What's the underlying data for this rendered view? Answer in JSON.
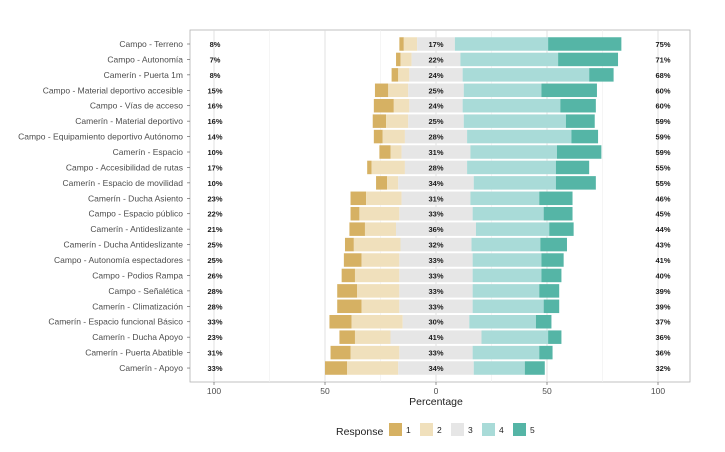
{
  "chart_data": {
    "type": "bar",
    "subtype": "diverging-stacked-likert",
    "xlabel": "Percentage",
    "xlim": [
      -100,
      100
    ],
    "xticks": [
      -100,
      -50,
      0,
      50,
      100
    ],
    "xtick_labels": [
      "100",
      "50",
      "0",
      "50",
      "100"
    ],
    "grid": true,
    "legend": {
      "title": "Response",
      "placement": "bottom",
      "labels": [
        "1",
        "2",
        "3",
        "4",
        "5"
      ]
    },
    "colors": {
      "1": "#D6B163",
      "2": "#F0E0BC",
      "3": "#E6E6E6",
      "4": "#A9DBD8",
      "5": "#55B5A6"
    },
    "categories": [
      "Campo - Terreno",
      "Campo - Autonomía",
      "Camerín - Puerta 1m",
      "Campo - Material deportivo accesible",
      "Campo - Vías de acceso",
      "Camerín - Material deportivo",
      "Campo - Equipamiento deportivo Autónomo",
      "Camerín - Espacio",
      "Campo - Accesibilidad de rutas",
      "Camerín - Espacio de movilidad",
      "Camerín - Ducha Asiento",
      "Campo - Espacio público",
      "Camerín - Antideslizante",
      "Camerín - Ducha Antideslizante",
      "Campo - Autonomía espectadores",
      "Campo - Podios Rampa",
      "Campo - Señalética",
      "Camerín - Climatización",
      "Camerín - Espacio funcional Básico",
      "Camerín - Ducha Apoyo",
      "Camerín - Puerta Abatible",
      "Camerín - Apoyo"
    ],
    "left_labels": [
      "8%",
      "7%",
      "8%",
      "15%",
      "16%",
      "16%",
      "14%",
      "10%",
      "17%",
      "10%",
      "23%",
      "22%",
      "21%",
      "25%",
      "25%",
      "26%",
      "28%",
      "28%",
      "33%",
      "23%",
      "31%",
      "33%"
    ],
    "center_labels": [
      "17%",
      "22%",
      "24%",
      "25%",
      "24%",
      "25%",
      "28%",
      "31%",
      "28%",
      "34%",
      "31%",
      "33%",
      "36%",
      "32%",
      "33%",
      "33%",
      "33%",
      "33%",
      "30%",
      "41%",
      "33%",
      "34%"
    ],
    "right_labels": [
      "75%",
      "71%",
      "68%",
      "60%",
      "60%",
      "59%",
      "59%",
      "59%",
      "55%",
      "55%",
      "46%",
      "45%",
      "44%",
      "43%",
      "41%",
      "40%",
      "39%",
      "39%",
      "37%",
      "36%",
      "36%",
      "32%"
    ],
    "series": [
      {
        "name": "1",
        "values": [
          2,
          2,
          3,
          6,
          9,
          6,
          4,
          5,
          2,
          5,
          7,
          4,
          7,
          4,
          8,
          6,
          9,
          11,
          10,
          7,
          9,
          10
        ]
      },
      {
        "name": "2",
        "values": [
          6,
          5,
          5,
          9,
          7,
          10,
          10,
          5,
          15,
          5,
          16,
          18,
          14,
          21,
          17,
          20,
          19,
          17,
          23,
          16,
          22,
          23
        ]
      },
      {
        "name": "3",
        "values": [
          17,
          22,
          24,
          25,
          24,
          25,
          28,
          31,
          28,
          34,
          31,
          33,
          36,
          32,
          33,
          33,
          33,
          33,
          30,
          41,
          33,
          34
        ]
      },
      {
        "name": "4",
        "values": [
          42,
          44,
          57,
          35,
          44,
          46,
          47,
          39,
          40,
          37,
          31,
          32,
          33,
          31,
          31,
          31,
          30,
          32,
          30,
          30,
          30,
          23
        ]
      },
      {
        "name": "5",
        "values": [
          33,
          27,
          11,
          25,
          16,
          13,
          12,
          20,
          15,
          18,
          15,
          13,
          11,
          12,
          10,
          9,
          9,
          7,
          7,
          6,
          6,
          9
        ]
      }
    ]
  }
}
